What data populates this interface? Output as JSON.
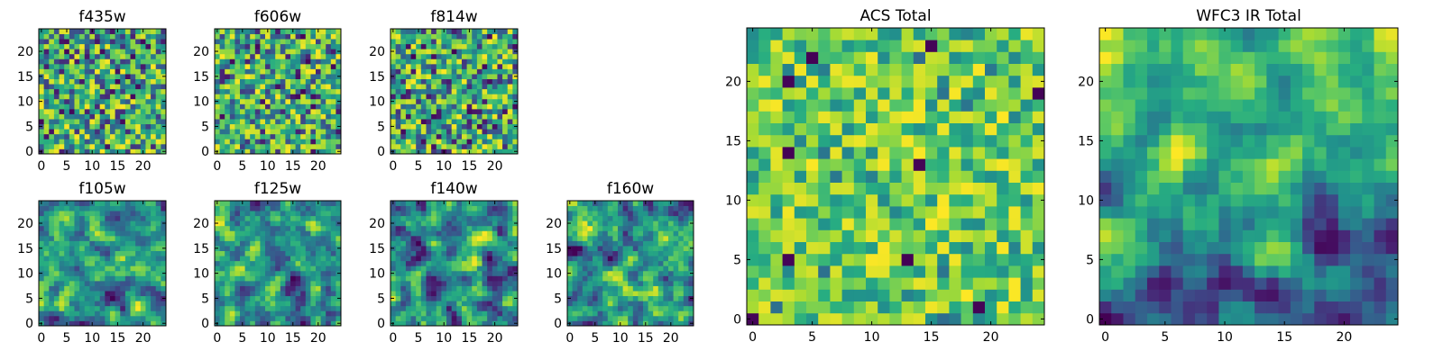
{
  "chart_data": [
    {
      "type": "heatmap",
      "title": "f435w",
      "xlim": [
        -0.5,
        24.5
      ],
      "ylim": [
        -0.5,
        24.5
      ],
      "xticks": [
        0,
        5,
        10,
        15,
        20
      ],
      "yticks": [
        0,
        5,
        10,
        15,
        20
      ],
      "grid_size": [
        25,
        25
      ],
      "colormap": "viridis",
      "pattern": "uniform-noise"
    },
    {
      "type": "heatmap",
      "title": "f606w",
      "xlim": [
        -0.5,
        24.5
      ],
      "ylim": [
        -0.5,
        24.5
      ],
      "xticks": [
        0,
        5,
        10,
        15,
        20
      ],
      "yticks": [
        0,
        5,
        10,
        15,
        20
      ],
      "grid_size": [
        25,
        25
      ],
      "colormap": "viridis",
      "pattern": "uniform-noise"
    },
    {
      "type": "heatmap",
      "title": "f814w",
      "xlim": [
        -0.5,
        24.5
      ],
      "ylim": [
        -0.5,
        24.5
      ],
      "xticks": [
        0,
        5,
        10,
        15,
        20
      ],
      "yticks": [
        0,
        5,
        10,
        15,
        20
      ],
      "grid_size": [
        25,
        25
      ],
      "colormap": "viridis",
      "pattern": "uniform-noise"
    },
    {
      "type": "heatmap",
      "title": "f105w",
      "xlim": [
        -0.5,
        24.5
      ],
      "ylim": [
        -0.5,
        24.5
      ],
      "xticks": [
        0,
        5,
        10,
        15,
        20
      ],
      "yticks": [
        0,
        5,
        10,
        15,
        20
      ],
      "grid_size": [
        25,
        25
      ],
      "colormap": "viridis",
      "pattern": "correlated-noise"
    },
    {
      "type": "heatmap",
      "title": "f125w",
      "xlim": [
        -0.5,
        24.5
      ],
      "ylim": [
        -0.5,
        24.5
      ],
      "xticks": [
        0,
        5,
        10,
        15,
        20
      ],
      "yticks": [
        0,
        5,
        10,
        15,
        20
      ],
      "grid_size": [
        25,
        25
      ],
      "colormap": "viridis",
      "pattern": "correlated-noise"
    },
    {
      "type": "heatmap",
      "title": "f140w",
      "xlim": [
        -0.5,
        24.5
      ],
      "ylim": [
        -0.5,
        24.5
      ],
      "xticks": [
        0,
        5,
        10,
        15,
        20
      ],
      "yticks": [
        0,
        5,
        10,
        15,
        20
      ],
      "grid_size": [
        25,
        25
      ],
      "colormap": "viridis",
      "pattern": "correlated-noise"
    },
    {
      "type": "heatmap",
      "title": "f160w",
      "xlim": [
        -0.5,
        24.5
      ],
      "ylim": [
        -0.5,
        24.5
      ],
      "xticks": [
        0,
        5,
        10,
        15,
        20
      ],
      "yticks": [
        0,
        5,
        10,
        15,
        20
      ],
      "grid_size": [
        25,
        25
      ],
      "colormap": "viridis",
      "pattern": "correlated-noise"
    },
    {
      "type": "heatmap",
      "title": "ACS Total",
      "xlim": [
        -0.5,
        24.5
      ],
      "ylim": [
        -0.5,
        24.5
      ],
      "xticks": [
        0,
        5,
        10,
        15,
        20
      ],
      "yticks": [
        0,
        5,
        10,
        15,
        20
      ],
      "grid_size": [
        25,
        25
      ],
      "colormap": "viridis",
      "pattern": "bright-noise"
    },
    {
      "type": "heatmap",
      "title": "WFC3 IR Total",
      "xlim": [
        -0.5,
        24.5
      ],
      "ylim": [
        -0.5,
        24.5
      ],
      "xticks": [
        0,
        5,
        10,
        15,
        20
      ],
      "yticks": [
        0,
        5,
        10,
        15,
        20
      ],
      "grid_size": [
        25,
        25
      ],
      "colormap": "viridis",
      "pattern": "smooth-gradient"
    }
  ]
}
